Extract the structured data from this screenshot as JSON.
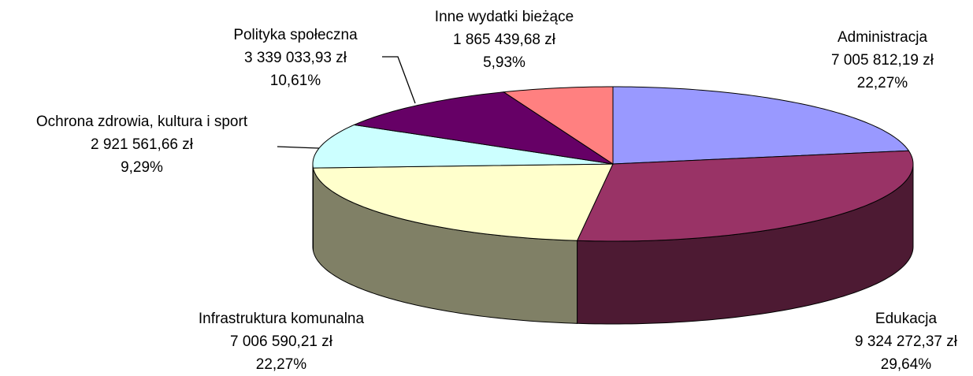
{
  "chart_data": {
    "type": "pie",
    "categories": [
      "Administracja",
      "Edukacja",
      "Infrastruktura komunalna",
      "Ochrona zdrowia, kultura i sport",
      "Polityka społeczna",
      "Inne wydatki bieżące"
    ],
    "values": [
      7005812.19,
      9324272.37,
      7006590.21,
      2921561.66,
      3339033.93,
      1865439.68
    ],
    "value_labels": [
      "7 005 812,19 zł",
      "9 324 272,37 zł",
      "7 006 590,21 zł",
      "2 921 561,66 zł",
      "3 339 033,93 zł",
      "1 865 439,68 zł"
    ],
    "percents": [
      22.27,
      29.64,
      22.27,
      9.29,
      10.61,
      5.93
    ],
    "percent_labels": [
      "22,27%",
      "29,64%",
      "22,27%",
      "9,29%",
      "10,61%",
      "5,93%"
    ],
    "colors": [
      "#9999ff",
      "#993366",
      "#ffffcc",
      "#ccffff",
      "#660066",
      "#ff8080"
    ]
  }
}
